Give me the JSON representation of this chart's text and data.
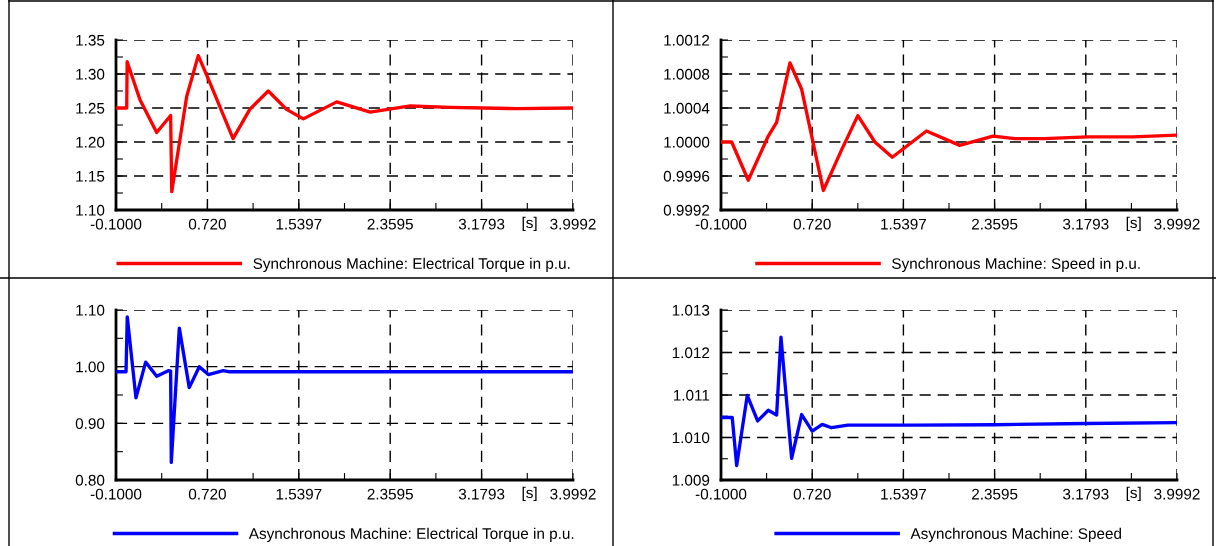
{
  "chart_data": [
    {
      "type": "line",
      "xlabel": "[s]",
      "xlim": [
        -0.1,
        3.9992
      ],
      "xticks": [
        {
          "value": -0.1,
          "label": "-0.1000"
        },
        {
          "value": 0.3099,
          "label": null
        },
        {
          "value": 0.72,
          "label": "0.720"
        },
        {
          "value": 1.12985,
          "label": null
        },
        {
          "value": 1.5397,
          "label": "1.5397"
        },
        {
          "value": 1.9496,
          "label": null
        },
        {
          "value": 2.3595,
          "label": "2.3595"
        },
        {
          "value": 2.7694,
          "label": null
        },
        {
          "value": 3.1793,
          "label": "3.1793"
        },
        {
          "value": 3.58925,
          "label": null
        },
        {
          "value": 3.9992,
          "label": "3.9992"
        }
      ],
      "ylim": [
        1.1,
        1.35
      ],
      "yticks": [
        {
          "value": 1.1,
          "label": "1.10"
        },
        {
          "value": 1.125,
          "label": null
        },
        {
          "value": 1.15,
          "label": "1.15"
        },
        {
          "value": 1.175,
          "label": null
        },
        {
          "value": 1.2,
          "label": "1.20"
        },
        {
          "value": 1.225,
          "label": null
        },
        {
          "value": 1.25,
          "label": "1.25"
        },
        {
          "value": 1.275,
          "label": null
        },
        {
          "value": 1.3,
          "label": "1.30"
        },
        {
          "value": 1.325,
          "label": null
        },
        {
          "value": 1.35,
          "label": "1.35"
        }
      ],
      "grid": true,
      "legend": "bottom",
      "line_style": "solid",
      "marker": "none",
      "series": [
        {
          "name": "Synchronous Machine: Electrical Torque in p.u.",
          "color": "#ff0000",
          "x": [
            -0.1,
            -0.004,
            0.0,
            0.115,
            0.265,
            0.39,
            0.4,
            0.534,
            0.638,
            0.743,
            0.95,
            1.1,
            1.266,
            1.43,
            1.58,
            1.88,
            2.18,
            2.54,
            2.9,
            3.2,
            3.5,
            3.9992
          ],
          "values": [
            1.25,
            1.25,
            1.318,
            1.262,
            1.214,
            1.239,
            1.127,
            1.267,
            1.327,
            1.287,
            1.205,
            1.248,
            1.275,
            1.248,
            1.234,
            1.259,
            1.244,
            1.253,
            1.251,
            1.25,
            1.249,
            1.25
          ]
        }
      ]
    },
    {
      "type": "line",
      "xlabel": "[s]",
      "xlim": [
        -0.1,
        3.9992
      ],
      "xticks": [
        {
          "value": -0.1,
          "label": "-0.1000"
        },
        {
          "value": 0.3099,
          "label": null
        },
        {
          "value": 0.72,
          "label": "0.720"
        },
        {
          "value": 1.12985,
          "label": null
        },
        {
          "value": 1.5397,
          "label": "1.5397"
        },
        {
          "value": 1.9496,
          "label": null
        },
        {
          "value": 2.3595,
          "label": "2.3595"
        },
        {
          "value": 2.7694,
          "label": null
        },
        {
          "value": 3.1793,
          "label": "3.1793"
        },
        {
          "value": 3.58925,
          "label": null
        },
        {
          "value": 3.9992,
          "label": "3.9992"
        }
      ],
      "ylim": [
        0.9992,
        1.0012
      ],
      "yticks": [
        {
          "value": 0.9992,
          "label": "0.9992"
        },
        {
          "value": 0.9994,
          "label": null
        },
        {
          "value": 0.9996,
          "label": "0.9996"
        },
        {
          "value": 0.9998,
          "label": null
        },
        {
          "value": 1.0,
          "label": "1.0000"
        },
        {
          "value": 1.0002,
          "label": null
        },
        {
          "value": 1.0004,
          "label": "1.0004"
        },
        {
          "value": 1.0006,
          "label": null
        },
        {
          "value": 1.0008,
          "label": "1.0008"
        },
        {
          "value": 1.001,
          "label": null
        },
        {
          "value": 1.0012,
          "label": "1.0012"
        }
      ],
      "grid": true,
      "legend": "bottom",
      "line_style": "solid",
      "marker": "none",
      "series": [
        {
          "name": "Synchronous Machine: Speed in p.u.",
          "color": "#ff0000",
          "x": [
            -0.1,
            -0.004,
            0.145,
            0.325,
            0.4,
            0.52,
            0.625,
            0.82,
            0.985,
            1.13,
            1.283,
            1.44,
            1.747,
            2.046,
            2.345,
            2.54,
            2.8,
            3.2,
            3.6,
            3.9992
          ],
          "values": [
            1.0,
            1.0,
            0.99955,
            1.00007,
            1.00023,
            1.00093,
            1.00062,
            0.99943,
            0.99991,
            1.00031,
            1.0,
            0.99982,
            1.00013,
            0.99996,
            1.00007,
            1.00004,
            1.00004,
            1.00006,
            1.00006,
            1.00008
          ]
        }
      ]
    },
    {
      "type": "line",
      "xlabel": "[s]",
      "xlim": [
        -0.1,
        3.9992
      ],
      "xticks": [
        {
          "value": -0.1,
          "label": "-0.1000"
        },
        {
          "value": 0.3099,
          "label": null
        },
        {
          "value": 0.72,
          "label": "0.720"
        },
        {
          "value": 1.12985,
          "label": null
        },
        {
          "value": 1.5397,
          "label": "1.5397"
        },
        {
          "value": 1.9496,
          "label": null
        },
        {
          "value": 2.3595,
          "label": "2.3595"
        },
        {
          "value": 2.7694,
          "label": null
        },
        {
          "value": 3.1793,
          "label": "3.1793"
        },
        {
          "value": 3.58925,
          "label": null
        },
        {
          "value": 3.9992,
          "label": "3.9992"
        }
      ],
      "ylim": [
        0.8,
        1.1
      ],
      "yticks": [
        {
          "value": 0.8,
          "label": "0.80"
        },
        {
          "value": 0.85,
          "label": null
        },
        {
          "value": 0.9,
          "label": "0.90"
        },
        {
          "value": 0.95,
          "label": null
        },
        {
          "value": 1.0,
          "label": "1.00"
        },
        {
          "value": 1.05,
          "label": null
        },
        {
          "value": 1.1,
          "label": "1.10"
        }
      ],
      "grid": true,
      "legend": "bottom",
      "line_style": "solid",
      "marker": "none",
      "series": [
        {
          "name": "Asynchronous Machine: Electrical Torque in p.u.",
          "color": "#0000ff",
          "x": [
            -0.1,
            -0.01,
            0.001,
            0.079,
            0.166,
            0.265,
            0.369,
            0.39,
            0.396,
            0.468,
            0.557,
            0.647,
            0.728,
            0.862,
            0.92,
            3.9992
          ],
          "values": [
            0.991,
            0.991,
            1.088,
            0.945,
            1.008,
            0.983,
            0.993,
            0.992,
            0.831,
            1.068,
            0.963,
            1.0,
            0.986,
            0.993,
            0.991,
            0.991
          ]
        }
      ]
    },
    {
      "type": "line",
      "xlabel": "[s]",
      "xlim": [
        -0.1,
        3.9992
      ],
      "xticks": [
        {
          "value": -0.1,
          "label": "-0.1000"
        },
        {
          "value": 0.3099,
          "label": null
        },
        {
          "value": 0.72,
          "label": "0.720"
        },
        {
          "value": 1.12985,
          "label": null
        },
        {
          "value": 1.5397,
          "label": "1.5397"
        },
        {
          "value": 1.9496,
          "label": null
        },
        {
          "value": 2.3595,
          "label": "2.3595"
        },
        {
          "value": 2.7694,
          "label": null
        },
        {
          "value": 3.1793,
          "label": "3.1793"
        },
        {
          "value": 3.58925,
          "label": null
        },
        {
          "value": 3.9992,
          "label": "3.9992"
        }
      ],
      "ylim": [
        1.009,
        1.013
      ],
      "yticks": [
        {
          "value": 1.009,
          "label": "1.009"
        },
        {
          "value": 1.0095,
          "label": null
        },
        {
          "value": 1.01,
          "label": "1.010"
        },
        {
          "value": 1.0105,
          "label": null
        },
        {
          "value": 1.011,
          "label": "1.011"
        },
        {
          "value": 1.0115,
          "label": null
        },
        {
          "value": 1.012,
          "label": "1.012"
        },
        {
          "value": 1.0125,
          "label": null
        },
        {
          "value": 1.013,
          "label": "1.013"
        }
      ],
      "grid": true,
      "legend": "bottom",
      "line_style": "solid",
      "marker": "none",
      "series": [
        {
          "name": "Asynchronous Machine: Speed",
          "color": "#0000ff",
          "x": [
            -0.1,
            0.001,
            0.041,
            0.136,
            0.229,
            0.325,
            0.4,
            0.439,
            0.535,
            0.625,
            0.72,
            0.81,
            0.894,
            1.04,
            1.642,
            2.36,
            3.18,
            3.9992
          ],
          "values": [
            1.01047,
            1.01047,
            1.00934,
            1.01099,
            1.01039,
            1.01064,
            1.01053,
            1.01236,
            1.00951,
            1.01054,
            1.01015,
            1.01031,
            1.01023,
            1.01029,
            1.01029,
            1.0103,
            1.01033,
            1.01035
          ]
        }
      ]
    }
  ]
}
